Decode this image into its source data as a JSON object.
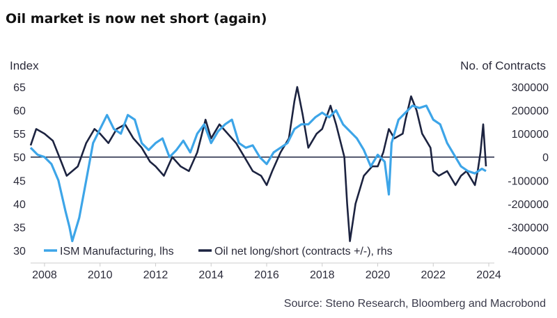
{
  "chart_data": {
    "type": "line",
    "title": "Oil market is now net short (again)",
    "ylabel_left": "Index",
    "ylabel_right": "No. of Contracts",
    "source": "Source: Steno Research, Bloomberg and Macrobond",
    "ylim_left": [
      30,
      65
    ],
    "ylim_right": [
      -400000,
      300000
    ],
    "xlim": [
      2007.5,
      2024.2
    ],
    "left_ticks": [
      "65",
      "60",
      "55",
      "50",
      "45",
      "40",
      "35",
      "30"
    ],
    "left_tick_values": [
      65,
      60,
      55,
      50,
      45,
      40,
      35,
      30
    ],
    "right_ticks": [
      "300000",
      "200000",
      "100000",
      "0",
      "-100000",
      "-200000",
      "-300000",
      "-400000"
    ],
    "right_tick_values": [
      300000,
      200000,
      100000,
      0,
      -100000,
      -200000,
      -300000,
      -400000
    ],
    "x_ticks": [
      "2008",
      "2010",
      "2012",
      "2014",
      "2016",
      "2018",
      "2020",
      "2022",
      "2024"
    ],
    "x_tick_values": [
      2008,
      2010,
      2012,
      2014,
      2016,
      2018,
      2020,
      2022,
      2024
    ],
    "colors": {
      "ism": "#3da5e8",
      "oil": "#1c2340",
      "zero_line": "#1c2340",
      "axis": "#cccccc"
    },
    "series": [
      {
        "name": "ISM Manufacturing, lhs",
        "axis": "left",
        "x": [
          2007.5,
          2007.75,
          2008.0,
          2008.25,
          2008.5,
          2008.75,
          2008.9,
          2009.0,
          2009.25,
          2009.5,
          2009.75,
          2010.0,
          2010.25,
          2010.5,
          2010.75,
          2011.0,
          2011.25,
          2011.5,
          2011.75,
          2012.0,
          2012.25,
          2012.5,
          2012.75,
          2013.0,
          2013.25,
          2013.5,
          2013.75,
          2014.0,
          2014.25,
          2014.5,
          2014.75,
          2015.0,
          2015.25,
          2015.5,
          2015.75,
          2016.0,
          2016.25,
          2016.5,
          2016.75,
          2017.0,
          2017.25,
          2017.5,
          2017.75,
          2018.0,
          2018.25,
          2018.5,
          2018.75,
          2019.0,
          2019.25,
          2019.5,
          2019.75,
          2020.0,
          2020.25,
          2020.4,
          2020.5,
          2020.75,
          2021.0,
          2021.25,
          2021.5,
          2021.75,
          2022.0,
          2022.25,
          2022.5,
          2022.75,
          2023.0,
          2023.25,
          2023.5,
          2023.75,
          2023.9
        ],
        "values": [
          52,
          50.5,
          50,
          48.5,
          45,
          38.5,
          35,
          32,
          37,
          45,
          53,
          56,
          59,
          56,
          55,
          59,
          58,
          53,
          51.5,
          53,
          54,
          50,
          51.5,
          53.5,
          51,
          55,
          57,
          53,
          55.5,
          57,
          58,
          53,
          52,
          52.5,
          50,
          48.5,
          51,
          52,
          53,
          56,
          57,
          57,
          58.5,
          59.5,
          58.5,
          60,
          57,
          55.5,
          54,
          51.5,
          48,
          50.5,
          49,
          42,
          53,
          58,
          59.5,
          61,
          60.5,
          61,
          58,
          57,
          53,
          50.5,
          48,
          47,
          46.5,
          47.5,
          47
        ]
      },
      {
        "name": "Oil net long/short (contracts +/-), rhs",
        "axis": "right",
        "x": [
          2007.5,
          2007.7,
          2008.0,
          2008.3,
          2008.6,
          2008.8,
          2009.0,
          2009.2,
          2009.5,
          2009.8,
          2010.0,
          2010.3,
          2010.6,
          2010.9,
          2011.2,
          2011.5,
          2011.8,
          2012.0,
          2012.3,
          2012.6,
          2012.9,
          2013.2,
          2013.5,
          2013.8,
          2014.0,
          2014.3,
          2014.6,
          2014.9,
          2015.2,
          2015.5,
          2015.8,
          2016.0,
          2016.2,
          2016.5,
          2016.8,
          2017.0,
          2017.1,
          2017.3,
          2017.5,
          2017.8,
          2018.0,
          2018.3,
          2018.5,
          2018.8,
          2018.9,
          2019.0,
          2019.2,
          2019.5,
          2019.8,
          2020.0,
          2020.2,
          2020.4,
          2020.6,
          2020.9,
          2021.0,
          2021.2,
          2021.4,
          2021.6,
          2021.9,
          2022.0,
          2022.2,
          2022.5,
          2022.8,
          2023.0,
          2023.2,
          2023.5,
          2023.6,
          2023.7,
          2023.8,
          2023.9
        ],
        "values": [
          50000,
          120000,
          100000,
          70000,
          -20000,
          -80000,
          -60000,
          -40000,
          60000,
          120000,
          100000,
          60000,
          120000,
          140000,
          80000,
          40000,
          -20000,
          -40000,
          -80000,
          0,
          -40000,
          -60000,
          20000,
          160000,
          80000,
          140000,
          100000,
          60000,
          0,
          -60000,
          -80000,
          -120000,
          -60000,
          20000,
          80000,
          240000,
          300000,
          180000,
          40000,
          100000,
          120000,
          220000,
          140000,
          0,
          -200000,
          -360000,
          -200000,
          -80000,
          -40000,
          -40000,
          20000,
          120000,
          80000,
          100000,
          160000,
          260000,
          200000,
          100000,
          40000,
          -60000,
          -80000,
          -60000,
          -120000,
          -80000,
          -60000,
          -120000,
          -60000,
          20000,
          140000,
          -40000
        ]
      }
    ]
  }
}
